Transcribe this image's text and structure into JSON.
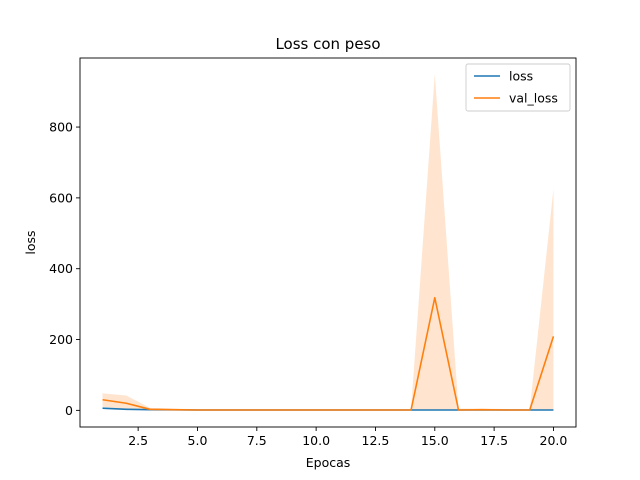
{
  "chart_data": {
    "type": "line",
    "title": "Loss con peso",
    "xlabel": "Epocas",
    "ylabel": "loss",
    "xlim": [
      0.05,
      20.95
    ],
    "ylim": [
      -47,
      995
    ],
    "xticks": [
      2.5,
      5.0,
      7.5,
      10.0,
      12.5,
      15.0,
      17.5,
      20.0
    ],
    "xtick_labels": [
      "2.5",
      "5.0",
      "7.5",
      "10.0",
      "12.5",
      "15.0",
      "17.5",
      "20.0"
    ],
    "yticks": [
      0,
      200,
      400,
      600,
      800
    ],
    "ytick_labels": [
      "0",
      "200",
      "400",
      "600",
      "800"
    ],
    "grid": false,
    "legend_position": "top-right",
    "x": [
      1,
      2,
      3,
      4,
      5,
      6,
      7,
      8,
      9,
      10,
      11,
      12,
      13,
      14,
      15,
      16,
      17,
      18,
      19,
      20
    ],
    "series": [
      {
        "name": "loss",
        "color": "#1f77b4",
        "values": [
          6,
          3,
          2,
          1.5,
          1,
          1,
          1,
          1,
          1,
          1,
          1,
          1,
          1,
          1,
          1,
          1,
          1,
          1,
          1,
          1
        ],
        "band_low": [
          4,
          2,
          1,
          1,
          0.5,
          0.5,
          0.5,
          0.5,
          0.5,
          0.5,
          0.5,
          0.5,
          0.5,
          0.5,
          0.5,
          0.5,
          0.5,
          0.5,
          0.5,
          0.5
        ],
        "band_high": [
          8,
          4,
          3,
          2,
          1.5,
          1.5,
          1.5,
          1.5,
          1.5,
          1.5,
          1.5,
          1.5,
          1.5,
          1.5,
          1.5,
          1.5,
          1.5,
          1.5,
          1.5,
          1.5
        ]
      },
      {
        "name": "val_loss",
        "color": "#ff7f0e",
        "values": [
          30,
          20,
          3,
          2,
          1,
          1,
          1,
          1,
          1,
          1,
          1,
          1,
          1,
          1,
          318,
          1,
          2,
          1,
          1,
          209
        ],
        "band_low": [
          10,
          3,
          0,
          0,
          0,
          0,
          0,
          0,
          0,
          0,
          0,
          0,
          0,
          0,
          0,
          0,
          0,
          0,
          0,
          0
        ],
        "band_high": [
          48,
          42,
          7,
          5,
          3,
          3,
          3,
          3,
          3,
          3,
          3,
          3,
          3,
          3,
          950,
          5,
          5,
          4,
          3,
          625
        ]
      }
    ]
  }
}
